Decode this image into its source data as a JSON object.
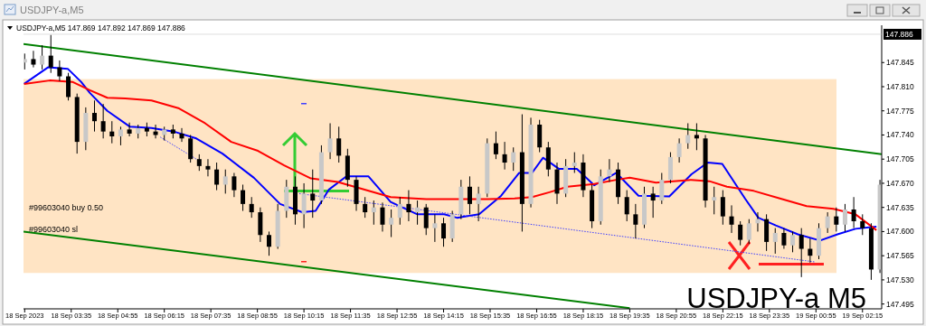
{
  "chart_data": {
    "type": "candlestick",
    "title": "USDJPY-a,M5",
    "subtitle": "USDJPY-a,M5  147.869 147.892 147.869 147.886",
    "annotations": [
      "#99603040 buy 0.50",
      "#99603040 sl",
      "USDJPY-a M5"
    ],
    "x": [
      "2023-09-18T02:15",
      "2023-09-18T02:30",
      "2023-09-18T02:45",
      "2023-09-18T03:00",
      "2023-09-18T03:15",
      "2023-09-18T03:30",
      "2023-09-18T03:45",
      "2023-09-18T04:00",
      "2023-09-18T04:15",
      "2023-09-18T04:30",
      "2023-09-18T04:45",
      "2023-09-18T05:00",
      "2023-09-18T05:15",
      "2023-09-18T05:30",
      "2023-09-18T05:45",
      "2023-09-18T06:00",
      "2023-09-18T06:15",
      "2023-09-18T06:30",
      "2023-09-18T06:45",
      "2023-09-18T07:00",
      "2023-09-18T07:15",
      "2023-09-18T07:30",
      "2023-09-18T07:45",
      "2023-09-18T08:00",
      "2023-09-18T08:15",
      "2023-09-18T08:30",
      "2023-09-18T08:45",
      "2023-09-18T09:00",
      "2023-09-18T09:15",
      "2023-09-18T09:30",
      "2023-09-18T09:45",
      "2023-09-18T10:00",
      "2023-09-18T10:15",
      "2023-09-18T10:30",
      "2023-09-18T10:45",
      "2023-09-18T11:00",
      "2023-09-18T11:15",
      "2023-09-18T11:30",
      "2023-09-18T11:45",
      "2023-09-18T12:00",
      "2023-09-18T12:15",
      "2023-09-18T12:30",
      "2023-09-18T12:45",
      "2023-09-18T13:00",
      "2023-09-18T13:15",
      "2023-09-18T13:30",
      "2023-09-18T13:45",
      "2023-09-18T14:00",
      "2023-09-18T14:15",
      "2023-09-18T14:30",
      "2023-09-18T14:45",
      "2023-09-18T15:00",
      "2023-09-18T15:15",
      "2023-09-18T15:30",
      "2023-09-18T15:45",
      "2023-09-18T16:00",
      "2023-09-18T16:15",
      "2023-09-18T16:30",
      "2023-09-18T16:45",
      "2023-09-18T17:00",
      "2023-09-18T17:15",
      "2023-09-18T17:30",
      "2023-09-18T17:45",
      "2023-09-18T18:00",
      "2023-09-18T18:15",
      "2023-09-18T18:30",
      "2023-09-18T18:45",
      "2023-09-18T19:00",
      "2023-09-18T19:15",
      "2023-09-18T19:30",
      "2023-09-18T19:45",
      "2023-09-18T20:00",
      "2023-09-18T20:15",
      "2023-09-18T20:30",
      "2023-09-18T20:45",
      "2023-09-18T21:00",
      "2023-09-18T21:15",
      "2023-09-18T21:30",
      "2023-09-18T21:45",
      "2023-09-18T22:00",
      "2023-09-18T22:15",
      "2023-09-18T22:30",
      "2023-09-18T22:45",
      "2023-09-18T23:00",
      "2023-09-18T23:15",
      "2023-09-18T23:30",
      "2023-09-18T23:45",
      "2023-09-19T00:00",
      "2023-09-19T00:15",
      "2023-09-19T00:30",
      "2023-09-19T00:45",
      "2023-09-19T01:00",
      "2023-09-19T01:15",
      "2023-09-19T01:30",
      "2023-09-19T01:45",
      "2023-09-19T02:00",
      "2023-09-19T02:15",
      "2023-09-19T02:30",
      "2023-09-19T02:45"
    ],
    "ohlc": [
      [
        147.845,
        147.858,
        147.835,
        147.85
      ],
      [
        147.85,
        147.862,
        147.838,
        147.842
      ],
      [
        147.842,
        147.87,
        147.835,
        147.855
      ],
      [
        147.855,
        147.885,
        147.83,
        147.838
      ],
      [
        147.838,
        147.848,
        147.818,
        147.825
      ],
      [
        147.825,
        147.83,
        147.79,
        147.795
      ],
      [
        147.795,
        147.8,
        147.713,
        147.73
      ],
      [
        147.73,
        147.78,
        147.718,
        147.772
      ],
      [
        147.772,
        147.79,
        147.745,
        147.76
      ],
      [
        147.76,
        147.785,
        147.735,
        147.745
      ],
      [
        147.745,
        147.76,
        147.728,
        147.738
      ],
      [
        147.738,
        147.752,
        147.725,
        147.748
      ],
      [
        147.748,
        147.758,
        147.738,
        147.742
      ],
      [
        147.742,
        147.755,
        147.735,
        147.75
      ],
      [
        147.75,
        147.758,
        147.738,
        147.745
      ],
      [
        147.745,
        147.755,
        147.735,
        147.74
      ],
      [
        147.74,
        147.752,
        147.732,
        147.748
      ],
      [
        147.748,
        147.755,
        147.735,
        147.742
      ],
      [
        147.742,
        147.75,
        147.73,
        147.735
      ],
      [
        147.735,
        147.74,
        147.7,
        147.705
      ],
      [
        147.705,
        147.712,
        147.688,
        147.695
      ],
      [
        147.695,
        147.705,
        147.68,
        147.69
      ],
      [
        147.69,
        147.7,
        147.66,
        147.668
      ],
      [
        147.668,
        147.69,
        147.655,
        147.68
      ],
      [
        147.68,
        147.685,
        147.65,
        147.66
      ],
      [
        147.66,
        147.668,
        147.63,
        147.64
      ],
      [
        147.64,
        147.65,
        147.62,
        147.628
      ],
      [
        147.628,
        147.635,
        147.585,
        147.595
      ],
      [
        147.595,
        147.6,
        147.565,
        147.578
      ],
      [
        147.578,
        147.64,
        147.575,
        147.63
      ],
      [
        147.63,
        147.675,
        147.62,
        147.665
      ],
      [
        147.665,
        147.68,
        147.61,
        147.625
      ],
      [
        147.625,
        147.67,
        147.605,
        147.655
      ],
      [
        147.655,
        147.69,
        147.62,
        147.645
      ],
      [
        147.645,
        147.725,
        147.64,
        147.715
      ],
      [
        147.715,
        147.757,
        147.705,
        147.735
      ],
      [
        147.735,
        147.752,
        147.7,
        147.71
      ],
      [
        147.71,
        147.72,
        147.665,
        147.675
      ],
      [
        147.675,
        147.68,
        147.63,
        147.64
      ],
      [
        147.64,
        147.65,
        147.62,
        147.628
      ],
      [
        147.628,
        147.645,
        147.61,
        147.635
      ],
      [
        147.635,
        147.642,
        147.6,
        147.61
      ],
      [
        147.61,
        147.632,
        147.592,
        147.62
      ],
      [
        147.62,
        147.65,
        147.61,
        147.64
      ],
      [
        147.64,
        147.66,
        147.615,
        147.628
      ],
      [
        147.628,
        147.645,
        147.61,
        147.635
      ],
      [
        147.635,
        147.64,
        147.595,
        147.605
      ],
      [
        147.605,
        147.625,
        147.585,
        147.612
      ],
      [
        147.612,
        147.62,
        147.578,
        147.59
      ],
      [
        147.59,
        147.63,
        147.585,
        147.625
      ],
      [
        147.625,
        147.675,
        147.618,
        147.665
      ],
      [
        147.665,
        147.68,
        147.625,
        147.64
      ],
      [
        147.64,
        147.665,
        147.615,
        147.655
      ],
      [
        147.655,
        147.735,
        147.65,
        147.728
      ],
      [
        147.728,
        147.745,
        147.705,
        147.712
      ],
      [
        147.712,
        147.73,
        147.69,
        147.7
      ],
      [
        147.7,
        147.722,
        147.688,
        147.715
      ],
      [
        147.715,
        147.77,
        147.6,
        147.64
      ],
      [
        147.64,
        147.765,
        147.635,
        147.755
      ],
      [
        147.755,
        147.762,
        147.715,
        147.722
      ],
      [
        147.722,
        147.73,
        147.68,
        147.69
      ],
      [
        147.69,
        147.7,
        147.64,
        147.655
      ],
      [
        147.655,
        147.705,
        147.65,
        147.695
      ],
      [
        147.695,
        147.715,
        147.685,
        147.7
      ],
      [
        147.7,
        147.712,
        147.65,
        147.66
      ],
      [
        147.66,
        147.668,
        147.605,
        147.615
      ],
      [
        147.615,
        147.69,
        147.61,
        147.68
      ],
      [
        147.68,
        147.705,
        147.672,
        147.69
      ],
      [
        147.69,
        147.7,
        147.64,
        147.65
      ],
      [
        147.65,
        147.66,
        147.615,
        147.625
      ],
      [
        147.625,
        147.64,
        147.59,
        147.61
      ],
      [
        147.61,
        147.665,
        147.605,
        147.655
      ],
      [
        147.655,
        147.665,
        147.62,
        147.645
      ],
      [
        147.645,
        147.685,
        147.64,
        147.675
      ],
      [
        147.675,
        147.715,
        147.67,
        147.708
      ],
      [
        147.708,
        147.735,
        147.7,
        147.728
      ],
      [
        147.728,
        147.757,
        147.72,
        147.74
      ],
      [
        147.74,
        147.757,
        147.718,
        147.735
      ],
      [
        147.735,
        147.74,
        147.635,
        147.645
      ],
      [
        147.645,
        147.665,
        147.625,
        147.65
      ],
      [
        147.65,
        147.66,
        147.61,
        147.622
      ],
      [
        147.622,
        147.638,
        147.598,
        147.61
      ],
      [
        147.61,
        147.615,
        147.58,
        147.588
      ],
      [
        147.588,
        147.618,
        147.582,
        147.612
      ],
      [
        147.612,
        147.628,
        147.6,
        147.618
      ],
      [
        147.618,
        147.625,
        147.572,
        147.585
      ],
      [
        147.585,
        147.605,
        147.568,
        147.598
      ],
      [
        147.598,
        147.605,
        147.575,
        147.58
      ],
      [
        147.58,
        147.6,
        147.57,
        147.595
      ],
      [
        147.595,
        147.605,
        147.534,
        147.575
      ],
      [
        147.575,
        147.59,
        147.555,
        147.565
      ],
      [
        147.565,
        147.612,
        147.56,
        147.605
      ],
      [
        147.605,
        147.628,
        147.598,
        147.622
      ],
      [
        147.622,
        147.635,
        147.6,
        147.61
      ],
      [
        147.61,
        147.64,
        147.6,
        147.632
      ],
      [
        147.632,
        147.65,
        147.605,
        147.615
      ],
      [
        147.615,
        147.625,
        147.595,
        147.605
      ],
      [
        147.605,
        147.612,
        147.53,
        147.545
      ],
      [
        147.545,
        147.675,
        147.54,
        147.668
      ]
    ],
    "series": [
      {
        "type": "line",
        "color": "#0000ff",
        "x": [
          "2023-09-18T02:14",
          "2023-09-18T02:55",
          "2023-09-18T03:29",
          "2023-09-18T03:52",
          "2023-09-18T04:07",
          "2023-09-18T04:37",
          "2023-09-18T05:16",
          "2023-09-18T05:53",
          "2023-09-18T06:31",
          "2023-09-18T07:10",
          "2023-09-18T07:55",
          "2023-09-18T08:49",
          "2023-09-18T09:34",
          "2023-09-18T10:12",
          "2023-09-18T10:35",
          "2023-09-18T10:58",
          "2023-09-18T11:28",
          "2023-09-18T12:06",
          "2023-09-18T12:44",
          "2023-09-18T13:30",
          "2023-09-18T14:16",
          "2023-09-18T14:38",
          "2023-09-18T15:16",
          "2023-09-18T15:54",
          "2023-09-18T16:25",
          "2023-09-18T16:47",
          "2023-09-18T17:06",
          "2023-09-18T17:33",
          "2023-09-18T18:04",
          "2023-09-18T18:34",
          "2023-09-18T19:12",
          "2023-09-18T19:50",
          "2023-09-18T20:43",
          "2023-09-18T21:21",
          "2023-09-18T21:49",
          "2023-09-18T22:14",
          "2023-09-18T22:53",
          "2023-09-18T23:16",
          "2023-09-18T23:46",
          "2023-09-19T00:24",
          "2023-09-19T01:02",
          "2023-09-19T01:32",
          "2023-09-19T02:03",
          "2023-09-19T02:26",
          "2023-09-19T02:39"
        ],
        "values": [
          147.814,
          147.838,
          147.836,
          147.817,
          147.801,
          147.775,
          147.752,
          147.75,
          147.745,
          147.735,
          147.713,
          147.678,
          147.64,
          147.628,
          147.63,
          147.661,
          147.68,
          147.68,
          147.643,
          147.625,
          147.625,
          147.62,
          147.625,
          147.652,
          147.685,
          147.685,
          147.707,
          147.691,
          147.691,
          147.667,
          147.685,
          147.652,
          147.651,
          147.683,
          147.7,
          147.698,
          147.648,
          147.62,
          147.609,
          147.596,
          147.587,
          147.596,
          147.604,
          147.606,
          147.607
        ]
      },
      {
        "type": "line",
        "color": "#ff0000",
        "x": [
          "2023-09-18T02:14",
          "2023-09-18T02:58",
          "2023-09-18T03:37",
          "2023-09-18T04:07",
          "2023-09-18T04:37",
          "2023-09-18T05:08",
          "2023-09-18T05:53",
          "2023-09-18T06:39",
          "2023-09-18T07:25",
          "2023-09-18T08:10",
          "2023-09-18T08:56",
          "2023-09-18T09:41",
          "2023-09-18T10:27",
          "2023-09-18T11:13",
          "2023-09-18T11:58",
          "2023-09-18T12:44",
          "2023-09-18T13:45",
          "2023-09-18T14:46",
          "2023-09-18T15:31",
          "2023-09-18T16:17",
          "2023-09-18T16:47",
          "2023-09-18T17:17",
          "2023-09-18T17:48",
          "2023-09-18T18:34",
          "2023-09-18T19:12",
          "2023-09-18T19:35",
          "2023-09-18T20:20",
          "2023-09-18T21:21",
          "2023-09-18T21:52",
          "2023-09-18T22:22",
          "2023-09-18T23:08",
          "2023-09-18T23:53",
          "2023-09-19T00:39",
          "2023-09-19T01:25",
          "2023-09-19T02:03",
          "2023-09-19T02:39"
        ],
        "values": [
          147.814,
          147.819,
          147.817,
          147.805,
          147.794,
          147.793,
          147.79,
          147.779,
          147.757,
          147.73,
          147.717,
          147.696,
          147.677,
          147.672,
          147.661,
          147.65,
          147.647,
          147.647,
          147.647,
          147.648,
          147.65,
          147.657,
          147.665,
          147.669,
          147.675,
          147.678,
          147.671,
          147.675,
          147.673,
          147.665,
          147.659,
          147.648,
          147.637,
          147.633,
          147.625,
          147.602
        ]
      },
      {
        "type": "line",
        "color": "#008000",
        "x": [
          "2023-09-18T02:13",
          "2023-09-19T02:48"
        ],
        "values": [
          147.872,
          147.712
        ]
      },
      {
        "type": "line",
        "color": "#008000",
        "x": [
          "2023-09-18T02:13",
          "2023-09-18T19:35"
        ],
        "values": [
          147.6,
          147.489
        ]
      },
      {
        "type": "line",
        "color": "#4040ff",
        "line_style": "dotted",
        "x": [
          "2023-09-18T06:08",
          "2023-09-18T07:14"
        ],
        "values": [
          147.737,
          147.703
        ]
      },
      {
        "type": "line",
        "color": "#4040ff",
        "line_style": "dotted",
        "x": [
          "2023-09-18T10:07",
          "2023-09-19T00:53"
        ],
        "values": [
          147.655,
          147.556
        ]
      }
    ],
    "bands": [
      {
        "axis": "y",
        "from": 147.54,
        "to": 147.821,
        "color": "#ffe4c4"
      }
    ],
    "ref_lines": [
      {
        "axis": "y",
        "value": 147.886,
        "label": "147.886",
        "color": "#c8c8c8"
      }
    ],
    "xlim": [
      "2023-09-18T02:13",
      "2023-09-19T02:48"
    ],
    "ylim": [
      147.488,
      147.899
    ],
    "xticks": [
      {
        "value": "2023-09-18T02:15",
        "label": "18 Sep 2023"
      },
      {
        "value": "2023-09-18T03:35",
        "label": "18 Sep 03:35"
      },
      {
        "value": "2023-09-18T04:55",
        "label": "18 Sep 04:55"
      },
      {
        "value": "2023-09-18T06:15",
        "label": "18 Sep 06:15"
      },
      {
        "value": "2023-09-18T07:35",
        "label": "18 Sep 07:35"
      },
      {
        "value": "2023-09-18T08:55",
        "label": "18 Sep 08:55"
      },
      {
        "value": "2023-09-18T10:15",
        "label": "18 Sep 10:15"
      },
      {
        "value": "2023-09-18T11:35",
        "label": "18 Sep 11:35"
      },
      {
        "value": "2023-09-18T12:55",
        "label": "18 Sep 12:55"
      },
      {
        "value": "2023-09-18T14:15",
        "label": "18 Sep 14:15"
      },
      {
        "value": "2023-09-18T15:35",
        "label": "18 Sep 15:35"
      },
      {
        "value": "2023-09-18T16:55",
        "label": "18 Sep 16:55"
      },
      {
        "value": "2023-09-18T18:15",
        "label": "18 Sep 18:15"
      },
      {
        "value": "2023-09-18T19:35",
        "label": "18 Sep 19:35"
      },
      {
        "value": "2023-09-18T20:55",
        "label": "18 Sep 20:55"
      },
      {
        "value": "2023-09-18T22:15",
        "label": "18 Sep 22:15"
      },
      {
        "value": "2023-09-18T23:35",
        "label": "18 Sep 23:35"
      },
      {
        "value": "2023-09-19T00:55",
        "label": "19 Sep 00:55"
      },
      {
        "value": "2023-09-19T02:15",
        "label": "19 Sep 02:15"
      }
    ],
    "yticks": [
      {
        "value": 147.845,
        "label": "147.845"
      },
      {
        "value": 147.81,
        "label": "147.810"
      },
      {
        "value": 147.775,
        "label": "147.775"
      },
      {
        "value": 147.74,
        "label": "147.740"
      },
      {
        "value": 147.705,
        "label": "147.705"
      },
      {
        "value": 147.67,
        "label": "147.670"
      },
      {
        "value": 147.635,
        "label": "147.635"
      },
      {
        "value": 147.6,
        "label": "147.600"
      },
      {
        "value": 147.565,
        "label": "147.565"
      },
      {
        "value": 147.53,
        "label": "147.530"
      },
      {
        "value": 147.495,
        "label": "147.495"
      }
    ],
    "grid": false
  }
}
